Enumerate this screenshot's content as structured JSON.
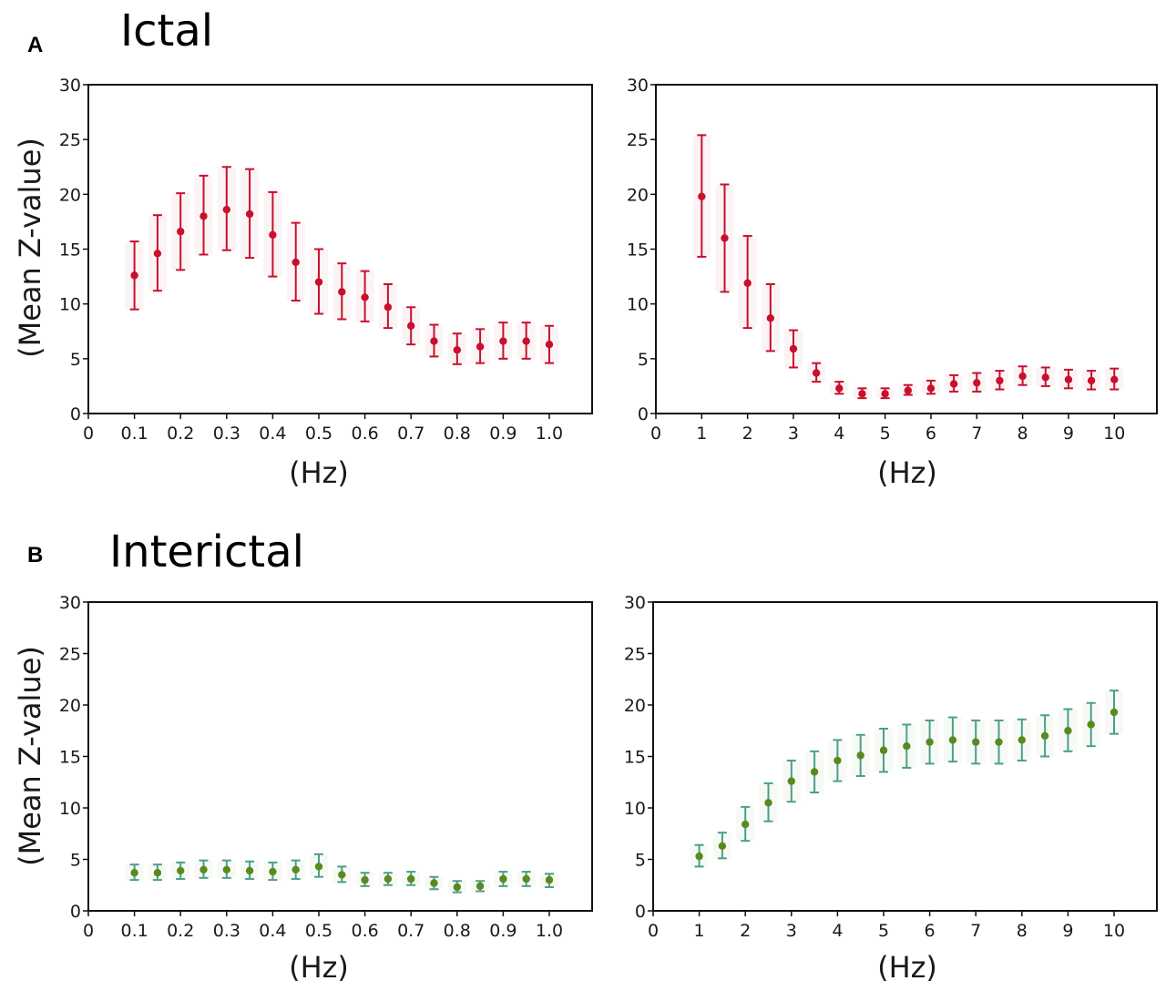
{
  "figure": {
    "panel_a": {
      "letter": "A",
      "title": "Ictal"
    },
    "panel_b": {
      "letter": "B",
      "title": "Interictal"
    },
    "ylabel": "(Mean Z-value)",
    "xlabel": "(Hz)",
    "colors": {
      "ictal": "#c8102e",
      "interictal": "#5a8a1e",
      "interictal_whisker": "#4aa08a"
    }
  },
  "chart_data": [
    {
      "type": "scatter",
      "panel": "A-left",
      "xlabel": "(Hz)",
      "ylabel": "(Mean Z-value)",
      "xlim": [
        0,
        1.0
      ],
      "ylim": [
        0,
        30
      ],
      "x_ticks": [
        "0",
        "0.1",
        "0.2",
        "0.3",
        "0.4",
        "0.5",
        "0.6",
        "0.7",
        "0.8",
        "0.9",
        "1.0"
      ],
      "y_ticks": [
        "0",
        "5",
        "10",
        "15",
        "20",
        "25",
        "30"
      ],
      "series": [
        {
          "x": [
            0.1,
            0.15,
            0.2,
            0.25,
            0.3,
            0.35,
            0.4,
            0.45,
            0.5,
            0.55,
            0.6,
            0.65,
            0.7,
            0.75,
            0.8,
            0.85,
            0.9,
            0.95,
            1.0
          ],
          "y": [
            12.6,
            14.6,
            16.6,
            18.0,
            18.6,
            18.2,
            16.3,
            13.8,
            12.0,
            11.1,
            10.6,
            9.7,
            8.0,
            6.6,
            5.8,
            6.1,
            6.6,
            6.6,
            6.3
          ],
          "error_low": [
            9.5,
            11.2,
            13.1,
            14.5,
            14.9,
            14.2,
            12.5,
            10.3,
            9.1,
            8.6,
            8.4,
            7.8,
            6.3,
            5.2,
            4.5,
            4.6,
            5.0,
            5.0,
            4.6
          ],
          "error_high": [
            15.7,
            18.1,
            20.1,
            21.7,
            22.5,
            22.3,
            20.2,
            17.4,
            15.0,
            13.7,
            13.0,
            11.8,
            9.7,
            8.1,
            7.3,
            7.7,
            8.3,
            8.3,
            8.0
          ]
        }
      ]
    },
    {
      "type": "scatter",
      "panel": "A-right",
      "xlabel": "(Hz)",
      "ylabel": "",
      "xlim": [
        0,
        10
      ],
      "ylim": [
        0,
        30
      ],
      "x_ticks": [
        "0",
        "1",
        "2",
        "3",
        "4",
        "5",
        "6",
        "7",
        "8",
        "9",
        "10"
      ],
      "y_ticks": [
        "0",
        "5",
        "10",
        "15",
        "20",
        "25",
        "30"
      ],
      "series": [
        {
          "x": [
            1,
            1.5,
            2,
            2.5,
            3,
            3.5,
            4,
            4.5,
            5,
            5.5,
            6,
            6.5,
            7,
            7.5,
            8,
            8.5,
            9,
            9.5,
            10
          ],
          "y": [
            19.8,
            16.0,
            11.9,
            8.7,
            5.9,
            3.7,
            2.3,
            1.8,
            1.8,
            2.1,
            2.3,
            2.7,
            2.8,
            3.0,
            3.4,
            3.3,
            3.1,
            3.0,
            3.1
          ],
          "error_low": [
            14.3,
            11.1,
            7.8,
            5.7,
            4.2,
            2.9,
            1.8,
            1.4,
            1.4,
            1.7,
            1.8,
            2.0,
            2.0,
            2.2,
            2.6,
            2.5,
            2.3,
            2.2,
            2.2
          ],
          "error_high": [
            25.4,
            20.9,
            16.2,
            11.8,
            7.6,
            4.6,
            2.9,
            2.3,
            2.3,
            2.6,
            3.0,
            3.5,
            3.7,
            3.9,
            4.3,
            4.2,
            4.0,
            3.9,
            4.1
          ]
        }
      ]
    },
    {
      "type": "scatter",
      "panel": "B-left",
      "xlabel": "(Hz)",
      "ylabel": "(Mean Z-value)",
      "xlim": [
        0,
        1.0
      ],
      "ylim": [
        0,
        30
      ],
      "x_ticks": [
        "0",
        "0.1",
        "0.2",
        "0.3",
        "0.4",
        "0.5",
        "0.6",
        "0.7",
        "0.8",
        "0.9",
        "1.0"
      ],
      "y_ticks": [
        "0",
        "5",
        "10",
        "15",
        "20",
        "25",
        "30"
      ],
      "series": [
        {
          "x": [
            0.1,
            0.15,
            0.2,
            0.25,
            0.3,
            0.35,
            0.4,
            0.45,
            0.5,
            0.55,
            0.6,
            0.65,
            0.7,
            0.75,
            0.8,
            0.85,
            0.9,
            0.95,
            1.0
          ],
          "y": [
            3.7,
            3.7,
            3.9,
            4.0,
            4.0,
            3.9,
            3.8,
            4.0,
            4.3,
            3.5,
            3.0,
            3.1,
            3.1,
            2.7,
            2.3,
            2.4,
            3.1,
            3.1,
            3.0
          ],
          "error_low": [
            3.0,
            3.0,
            3.1,
            3.2,
            3.2,
            3.1,
            3.0,
            3.1,
            3.3,
            2.8,
            2.4,
            2.5,
            2.5,
            2.1,
            1.8,
            1.9,
            2.4,
            2.4,
            2.3
          ],
          "error_high": [
            4.5,
            4.5,
            4.7,
            4.9,
            4.9,
            4.8,
            4.7,
            4.9,
            5.5,
            4.3,
            3.7,
            3.7,
            3.8,
            3.3,
            2.9,
            2.9,
            3.8,
            3.8,
            3.6
          ]
        }
      ]
    },
    {
      "type": "scatter",
      "panel": "B-right",
      "xlabel": "(Hz)",
      "ylabel": "",
      "xlim": [
        0,
        10
      ],
      "ylim": [
        0,
        30
      ],
      "x_ticks": [
        "0",
        "1",
        "2",
        "3",
        "4",
        "5",
        "6",
        "7",
        "8",
        "9",
        "10"
      ],
      "y_ticks": [
        "0",
        "5",
        "10",
        "15",
        "20",
        "25",
        "30"
      ],
      "series": [
        {
          "x": [
            1,
            1.5,
            2,
            2.5,
            3,
            3.5,
            4,
            4.5,
            5,
            5.5,
            6,
            6.5,
            7,
            7.5,
            8,
            8.5,
            9,
            9.5,
            10
          ],
          "y": [
            5.3,
            6.3,
            8.4,
            10.5,
            12.6,
            13.5,
            14.6,
            15.1,
            15.6,
            16.0,
            16.4,
            16.6,
            16.4,
            16.4,
            16.6,
            17.0,
            17.5,
            18.1,
            19.3
          ],
          "error_low": [
            4.3,
            5.1,
            6.8,
            8.7,
            10.6,
            11.5,
            12.6,
            13.1,
            13.5,
            13.9,
            14.3,
            14.5,
            14.3,
            14.3,
            14.6,
            15.0,
            15.5,
            16.0,
            17.2
          ],
          "error_high": [
            6.4,
            7.6,
            10.1,
            12.4,
            14.6,
            15.5,
            16.6,
            17.1,
            17.7,
            18.1,
            18.5,
            18.8,
            18.5,
            18.5,
            18.6,
            19.0,
            19.6,
            20.2,
            21.4
          ]
        }
      ]
    }
  ]
}
